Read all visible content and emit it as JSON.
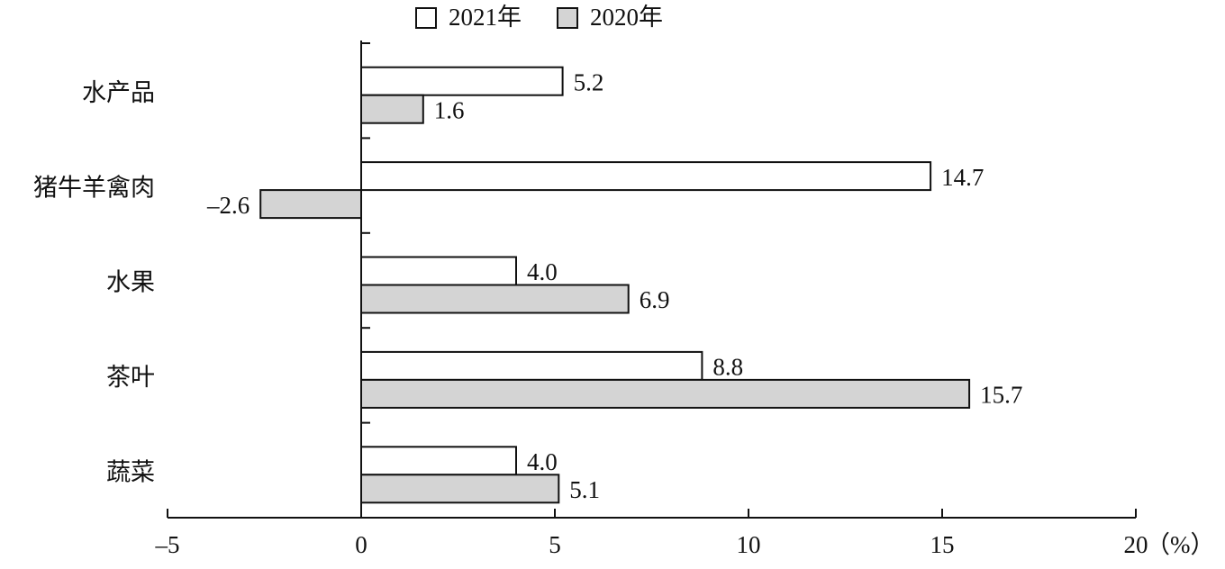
{
  "chart_data": {
    "type": "hbar",
    "categories": [
      "水产品",
      "猪牛羊禽肉",
      "水果",
      "茶叶",
      "蔬菜"
    ],
    "series": [
      {
        "name": "2021年",
        "color": "#ffffff",
        "values": [
          5.2,
          14.7,
          4.0,
          8.8,
          4.0
        ],
        "value_labels": [
          "5.2",
          "14.7",
          "4.0",
          "8.8",
          "4.0"
        ]
      },
      {
        "name": "2020年",
        "color": "#d4d4d4",
        "values": [
          1.6,
          -2.6,
          6.9,
          15.7,
          5.1
        ],
        "value_labels": [
          "1.6",
          "–2.6",
          "6.9",
          "15.7",
          "5.1"
        ]
      }
    ],
    "xlim": [
      -5,
      20
    ],
    "xticks": [
      {
        "value": -5,
        "label": "–5"
      },
      0,
      5,
      10,
      15,
      20
    ],
    "x_unit": "（%）"
  }
}
